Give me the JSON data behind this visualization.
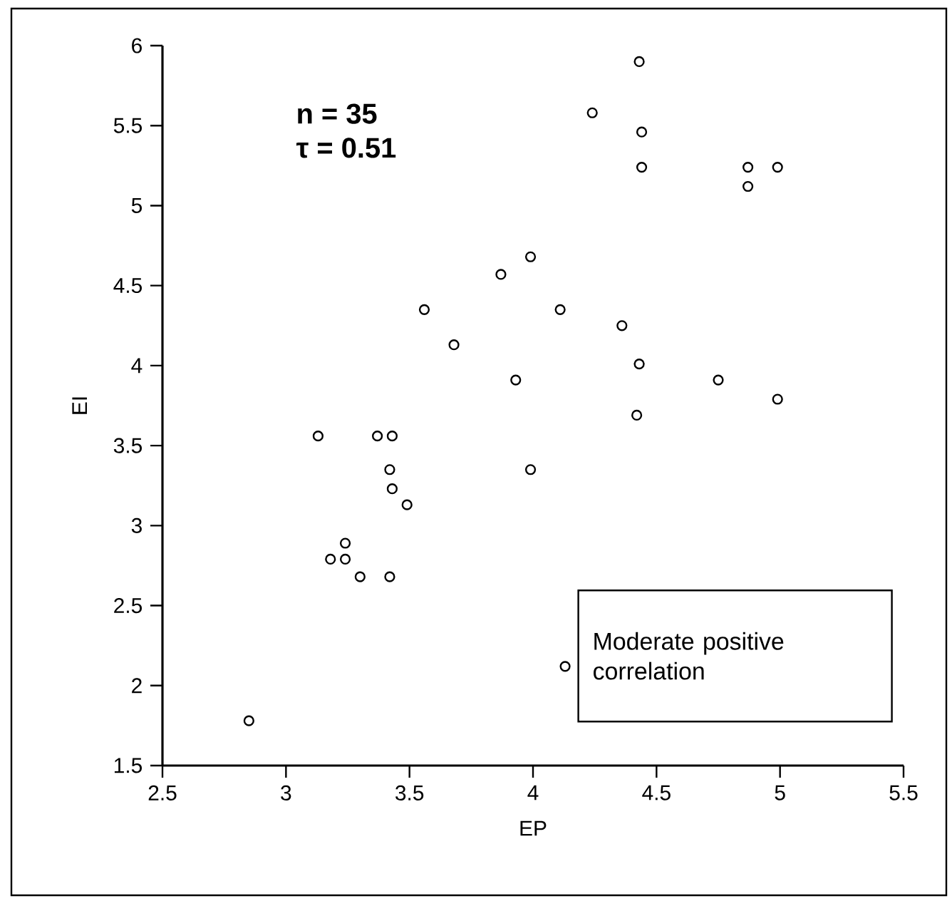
{
  "chart_data": {
    "type": "scatter",
    "xlabel": "EP",
    "ylabel": "EI",
    "x": [
      2.85,
      3.13,
      3.18,
      3.24,
      3.24,
      3.3,
      3.37,
      3.43,
      3.42,
      3.43,
      3.42,
      3.49,
      3.56,
      3.68,
      3.87,
      3.93,
      3.99,
      3.99,
      4.11,
      4.13,
      4.24,
      4.36,
      4.43,
      4.44,
      4.44,
      4.43,
      4.42,
      4.75,
      4.87,
      4.87,
      4.99,
      4.99
    ],
    "values": [
      1.78,
      3.56,
      2.79,
      2.79,
      2.89,
      2.68,
      3.56,
      3.56,
      3.35,
      3.23,
      2.68,
      3.13,
      4.35,
      4.13,
      4.57,
      3.91,
      4.68,
      3.35,
      4.35,
      2.12,
      5.58,
      4.25,
      5.9,
      5.46,
      5.24,
      4.01,
      3.69,
      3.91,
      5.24,
      5.12,
      5.24,
      3.79
    ],
    "color": "#000000",
    "marker": "circle",
    "xlim": [
      2.5,
      5.5
    ],
    "xticks": [
      2.5,
      3,
      3.5,
      4,
      4.5,
      5,
      5.5
    ],
    "ylim": [
      1.5,
      6
    ],
    "yticks": [
      1.5,
      2,
      2.5,
      3,
      3.5,
      4,
      4.5,
      5,
      5.5,
      6
    ],
    "annotations": [
      "n = 35",
      "τ = 0.51",
      "Moderate positive correlation"
    ]
  }
}
